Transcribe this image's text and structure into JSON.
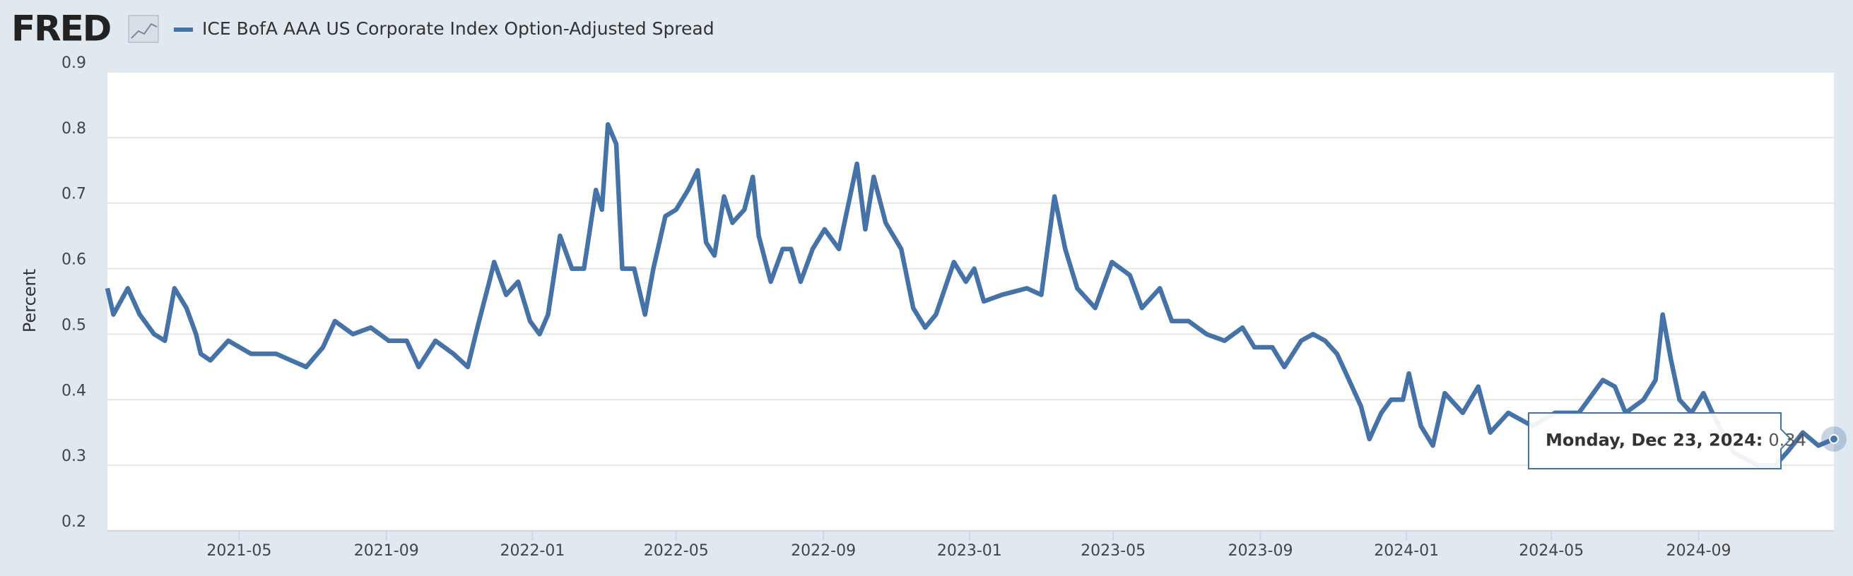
{
  "logo": "FRED",
  "chart_data": {
    "type": "line",
    "y_label": "Percent",
    "x": [
      "2021-01-11",
      "2021-01-16",
      "2021-01-28",
      "2021-02-07",
      "2021-02-19",
      "2021-02-28",
      "2021-03-08",
      "2021-03-18",
      "2021-03-26",
      "2021-03-30",
      "2021-04-07",
      "2021-04-22",
      "2021-05-11",
      "2021-06-01",
      "2021-06-26",
      "2021-07-10",
      "2021-07-20",
      "2021-08-04",
      "2021-08-19",
      "2021-09-03",
      "2021-09-18",
      "2021-09-28",
      "2021-10-12",
      "2021-10-27",
      "2021-11-08",
      "2021-11-16",
      "2021-11-26",
      "2021-11-30",
      "2021-12-10",
      "2021-12-20",
      "2021-12-30",
      "2022-01-07",
      "2022-01-14",
      "2022-01-24",
      "2022-02-03",
      "2022-02-13",
      "2022-02-23",
      "2022-02-28",
      "2022-03-05",
      "2022-03-12",
      "2022-03-17",
      "2022-03-27",
      "2022-04-05",
      "2022-04-12",
      "2022-04-22",
      "2022-05-01",
      "2022-05-11",
      "2022-05-19",
      "2022-05-26",
      "2022-06-02",
      "2022-06-10",
      "2022-06-17",
      "2022-06-27",
      "2022-07-04",
      "2022-07-09",
      "2022-07-19",
      "2022-07-29",
      "2022-08-05",
      "2022-08-13",
      "2022-08-23",
      "2022-09-02",
      "2022-09-14",
      "2022-09-29",
      "2022-10-06",
      "2022-10-13",
      "2022-10-23",
      "2022-11-05",
      "2022-11-15",
      "2022-11-25",
      "2022-12-04",
      "2022-12-19",
      "2022-12-29",
      "2023-01-05",
      "2023-01-13",
      "2023-01-28",
      "2023-02-18",
      "2023-03-02",
      "2023-03-13",
      "2023-03-22",
      "2023-04-01",
      "2023-04-16",
      "2023-04-30",
      "2023-05-15",
      "2023-05-25",
      "2023-06-09",
      "2023-06-19",
      "2023-07-03",
      "2023-07-18",
      "2023-08-02",
      "2023-08-17",
      "2023-08-27",
      "2023-09-11",
      "2023-09-21",
      "2023-10-05",
      "2023-10-15",
      "2023-10-25",
      "2023-11-04",
      "2023-11-14",
      "2023-11-24",
      "2023-12-01",
      "2023-12-11",
      "2023-12-19",
      "2023-12-29",
      "2024-01-03",
      "2024-01-13",
      "2024-01-23",
      "2024-02-02",
      "2024-02-17",
      "2024-03-01",
      "2024-03-11",
      "2024-03-26",
      "2024-04-15",
      "2024-05-04",
      "2024-05-24",
      "2024-06-13",
      "2024-06-23",
      "2024-07-02",
      "2024-07-17",
      "2024-07-27",
      "2024-08-02",
      "2024-08-09",
      "2024-08-16",
      "2024-08-26",
      "2024-09-05",
      "2024-09-15",
      "2024-09-30",
      "2024-10-20",
      "2024-11-04",
      "2024-11-14",
      "2024-11-27",
      "2024-12-10",
      "2024-12-23"
    ],
    "series": [
      {
        "name": "ICE BofA AAA US Corporate Index Option-Adjusted Spread",
        "color": "#4572a7",
        "values": [
          0.57,
          0.53,
          0.57,
          0.53,
          0.5,
          0.49,
          0.57,
          0.54,
          0.5,
          0.47,
          0.46,
          0.49,
          0.47,
          0.47,
          0.45,
          0.48,
          0.52,
          0.5,
          0.51,
          0.49,
          0.49,
          0.45,
          0.49,
          0.47,
          0.45,
          0.51,
          0.58,
          0.61,
          0.56,
          0.58,
          0.52,
          0.5,
          0.53,
          0.65,
          0.6,
          0.6,
          0.72,
          0.69,
          0.82,
          0.79,
          0.6,
          0.6,
          0.53,
          0.6,
          0.68,
          0.69,
          0.72,
          0.75,
          0.64,
          0.62,
          0.71,
          0.67,
          0.69,
          0.74,
          0.65,
          0.58,
          0.63,
          0.63,
          0.58,
          0.63,
          0.66,
          0.63,
          0.76,
          0.66,
          0.74,
          0.67,
          0.63,
          0.54,
          0.51,
          0.53,
          0.61,
          0.58,
          0.6,
          0.55,
          0.56,
          0.57,
          0.56,
          0.71,
          0.63,
          0.57,
          0.54,
          0.61,
          0.59,
          0.54,
          0.57,
          0.52,
          0.52,
          0.5,
          0.49,
          0.51,
          0.48,
          0.48,
          0.45,
          0.49,
          0.5,
          0.49,
          0.47,
          0.43,
          0.39,
          0.34,
          0.38,
          0.4,
          0.4,
          0.44,
          0.36,
          0.33,
          0.41,
          0.38,
          0.42,
          0.35,
          0.38,
          0.36,
          0.38,
          0.38,
          0.43,
          0.42,
          0.38,
          0.4,
          0.43,
          0.53,
          0.46,
          0.4,
          0.38,
          0.41,
          0.37,
          0.32,
          0.3,
          0.3,
          0.32,
          0.35,
          0.33,
          0.34
        ]
      }
    ],
    "xlim": [
      "2021-01-11",
      "2024-12-23"
    ],
    "xticks": [
      {
        "value": "2021-05-01",
        "label": "2021-05"
      },
      {
        "value": "2021-09-01",
        "label": "2021-09"
      },
      {
        "value": "2022-01-01",
        "label": "2022-01"
      },
      {
        "value": "2022-05-01",
        "label": "2022-05"
      },
      {
        "value": "2022-09-01",
        "label": "2022-09"
      },
      {
        "value": "2023-01-01",
        "label": "2023-01"
      },
      {
        "value": "2023-05-01",
        "label": "2023-05"
      },
      {
        "value": "2023-09-01",
        "label": "2023-09"
      },
      {
        "value": "2024-01-01",
        "label": "2024-01"
      },
      {
        "value": "2024-05-01",
        "label": "2024-05"
      },
      {
        "value": "2024-09-01",
        "label": "2024-09"
      }
    ],
    "ylim": [
      0.2,
      0.9
    ],
    "yticks": [
      0.2,
      0.3,
      0.4,
      0.5,
      0.6,
      0.7,
      0.8,
      0.9
    ],
    "grid": true,
    "tooltip": {
      "label": "Monday, Dec 23, 2024:",
      "date": "2024-12-23",
      "value": 0.34
    }
  }
}
